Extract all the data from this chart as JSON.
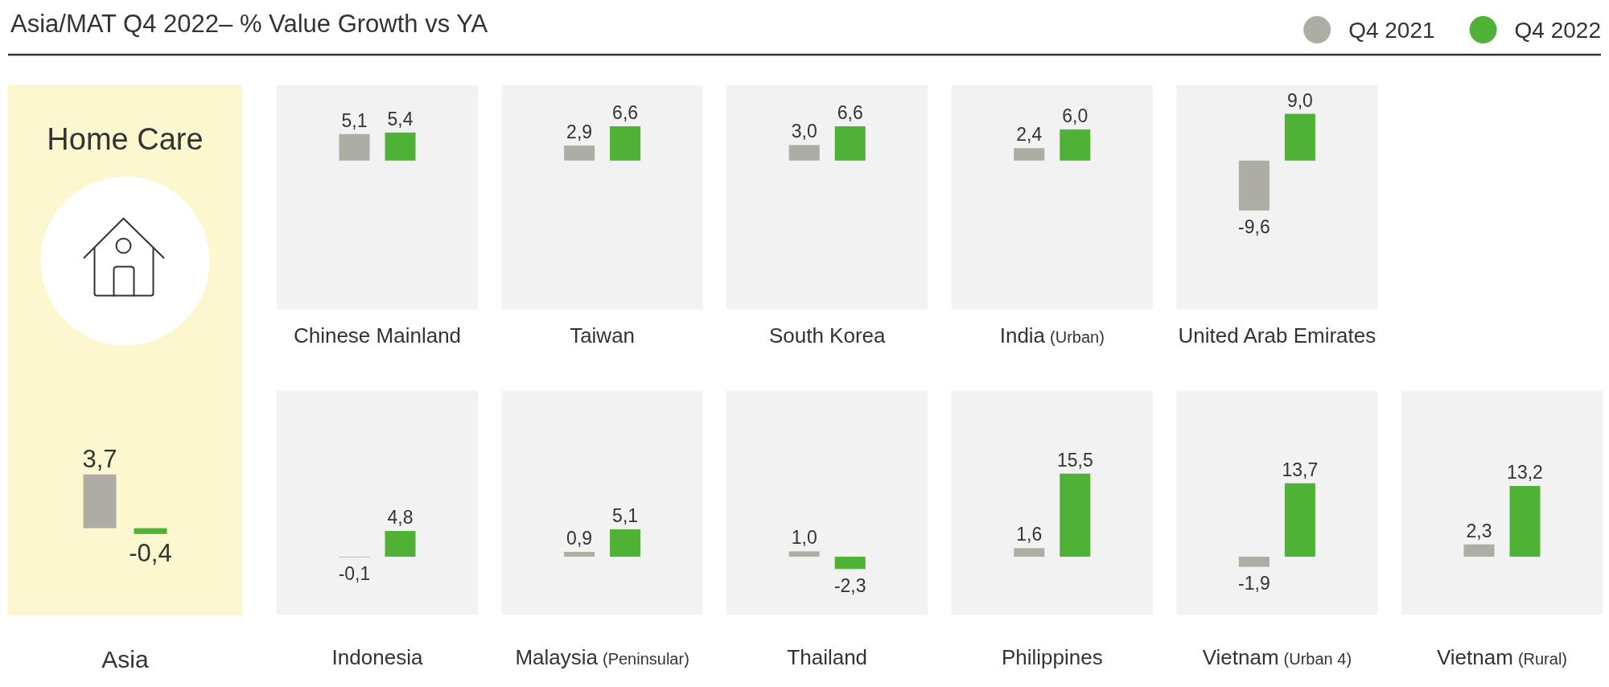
{
  "chart_data": [
    {
      "type": "bar",
      "title": "Asia/MAT Q4 2022– % Value Growth vs YA",
      "annotations": [
        "Home Care"
      ],
      "legend": "top right",
      "categories": [
        "Asia"
      ],
      "series": [
        {
          "name": "Q4 2021",
          "color": "#aeada3",
          "values": [
            3.7
          ],
          "value_labels": [
            "3,7"
          ]
        },
        {
          "name": "Q4 2022",
          "color": "#4fb135",
          "values": [
            -0.4
          ],
          "value_labels": [
            "-0,4"
          ]
        }
      ],
      "ylim": [
        -6,
        30.5
      ],
      "tick_labels": "x"
    },
    {
      "type": "bar",
      "categories": [
        "Chinese Mainland"
      ],
      "series": [
        {
          "color": "#aeada3",
          "values": [
            5.1
          ],
          "value_labels": [
            "5,1"
          ]
        },
        {
          "color": "#4fb135",
          "values": [
            5.4
          ],
          "value_labels": [
            "5,4"
          ]
        }
      ],
      "ylim": [
        -28.7,
        14.5
      ],
      "tick_labels": "x"
    },
    {
      "type": "bar",
      "categories": [
        "Taiwan"
      ],
      "series": [
        {
          "color": "#aeada3",
          "values": [
            2.9
          ],
          "value_labels": [
            "2,9"
          ]
        },
        {
          "color": "#4fb135",
          "values": [
            6.6
          ],
          "value_labels": [
            "6,6"
          ]
        }
      ],
      "ylim": [
        -28.7,
        14.5
      ],
      "tick_labels": "x"
    },
    {
      "type": "bar",
      "categories": [
        "South Korea"
      ],
      "series": [
        {
          "color": "#aeada3",
          "values": [
            3.0
          ],
          "value_labels": [
            "3,0"
          ]
        },
        {
          "color": "#4fb135",
          "values": [
            6.6
          ],
          "value_labels": [
            "6,6"
          ]
        }
      ],
      "ylim": [
        -28.7,
        14.5
      ],
      "tick_labels": "x"
    },
    {
      "type": "bar",
      "categories": [
        "India (Urban)"
      ],
      "series": [
        {
          "color": "#aeada3",
          "values": [
            2.4
          ],
          "value_labels": [
            "2,4"
          ]
        },
        {
          "color": "#4fb135",
          "values": [
            6.0
          ],
          "value_labels": [
            "6,0"
          ]
        }
      ],
      "ylim": [
        -28.7,
        14.5
      ],
      "tick_labels": "x"
    },
    {
      "type": "bar",
      "categories": [
        "United Arab Emirates"
      ],
      "series": [
        {
          "color": "#aeada3",
          "values": [
            -9.6
          ],
          "value_labels": [
            "-9,6"
          ]
        },
        {
          "color": "#4fb135",
          "values": [
            9.0
          ],
          "value_labels": [
            "9,0"
          ]
        }
      ],
      "ylim": [
        -28.7,
        14.5
      ],
      "tick_labels": "x"
    },
    {
      "type": "bar",
      "categories": [
        "Indonesia"
      ],
      "series": [
        {
          "color": "#aeada3",
          "values": [
            -0.1
          ],
          "value_labels": [
            "-0,1"
          ]
        },
        {
          "color": "#4fb135",
          "values": [
            4.8
          ],
          "value_labels": [
            "4,8"
          ]
        }
      ],
      "ylim": [
        -10.8,
        31
      ],
      "tick_labels": "x"
    },
    {
      "type": "bar",
      "categories": [
        "Malaysia (Peninsular)"
      ],
      "series": [
        {
          "color": "#aeada3",
          "values": [
            0.9
          ],
          "value_labels": [
            "0,9"
          ]
        },
        {
          "color": "#4fb135",
          "values": [
            5.1
          ],
          "value_labels": [
            "5,1"
          ]
        }
      ],
      "ylim": [
        -10.8,
        31
      ],
      "tick_labels": "x"
    },
    {
      "type": "bar",
      "categories": [
        "Thailand"
      ],
      "series": [
        {
          "color": "#aeada3",
          "values": [
            1.0
          ],
          "value_labels": [
            "1,0"
          ]
        },
        {
          "color": "#4fb135",
          "values": [
            -2.3
          ],
          "value_labels": [
            "-2,3"
          ]
        }
      ],
      "ylim": [
        -10.8,
        31
      ],
      "tick_labels": "x"
    },
    {
      "type": "bar",
      "categories": [
        "Philippines"
      ],
      "series": [
        {
          "color": "#aeada3",
          "values": [
            1.6
          ],
          "value_labels": [
            "1,6"
          ]
        },
        {
          "color": "#4fb135",
          "values": [
            15.5
          ],
          "value_labels": [
            "15,5"
          ]
        }
      ],
      "ylim": [
        -10.8,
        31
      ],
      "tick_labels": "x"
    },
    {
      "type": "bar",
      "categories": [
        "Vietnam (Urban 4)"
      ],
      "series": [
        {
          "color": "#aeada3",
          "values": [
            -1.9
          ],
          "value_labels": [
            "-1,9"
          ]
        },
        {
          "color": "#4fb135",
          "values": [
            13.7
          ],
          "value_labels": [
            "13,7"
          ]
        }
      ],
      "ylim": [
        -10.8,
        31
      ],
      "tick_labels": "x"
    },
    {
      "type": "bar",
      "categories": [
        "Vietnam (Rural)"
      ],
      "series": [
        {
          "color": "#aeada3",
          "values": [
            2.3
          ],
          "value_labels": [
            "2,3"
          ]
        },
        {
          "color": "#4fb135",
          "values": [
            13.2
          ],
          "value_labels": [
            "13,2"
          ]
        }
      ],
      "ylim": [
        -10.8,
        31
      ],
      "tick_labels": "x"
    }
  ]
}
